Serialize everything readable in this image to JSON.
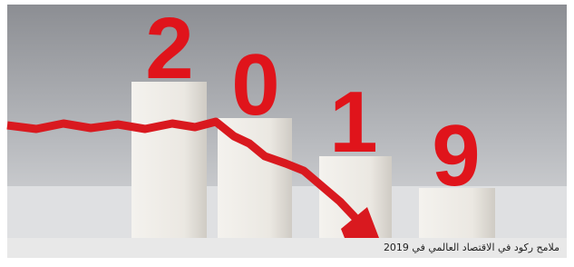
{
  "image": {
    "digits": [
      "2",
      "0",
      "1",
      "9"
    ]
  },
  "caption": "ملامح ركود في الاقتصاد العالمي في 2019"
}
